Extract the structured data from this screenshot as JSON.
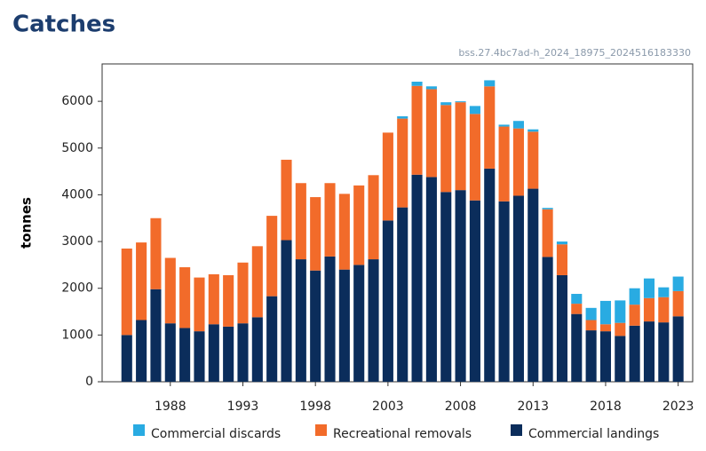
{
  "chart_data": {
    "type": "stacked-bar",
    "title": "Catches",
    "subtitle": "bss.27.4bc7ad-h_2024_18975_2024516183330",
    "ylabel": "tonnes",
    "x": [
      1985,
      1986,
      1987,
      1988,
      1989,
      1990,
      1991,
      1992,
      1993,
      1994,
      1995,
      1996,
      1997,
      1998,
      1999,
      2000,
      2001,
      2002,
      2003,
      2004,
      2005,
      2006,
      2007,
      2008,
      2009,
      2010,
      2011,
      2012,
      2013,
      2014,
      2015,
      2016,
      2017,
      2018,
      2019,
      2020,
      2021,
      2022,
      2023
    ],
    "series": [
      {
        "name": "Commercial discards",
        "color": "#29abe2",
        "values": [
          0,
          0,
          0,
          0,
          0,
          0,
          0,
          0,
          0,
          0,
          0,
          0,
          0,
          0,
          0,
          0,
          0,
          0,
          0,
          50,
          90,
          60,
          60,
          20,
          170,
          130,
          40,
          160,
          50,
          30,
          60,
          210,
          260,
          500,
          480,
          350,
          420,
          210,
          310
        ]
      },
      {
        "name": "Recreational removals",
        "color": "#f26b2a",
        "values": [
          1850,
          1660,
          1520,
          1400,
          1300,
          1150,
          1070,
          1100,
          1300,
          1520,
          1720,
          1720,
          1630,
          1570,
          1570,
          1620,
          1700,
          1800,
          1880,
          1900,
          1900,
          1880,
          1860,
          1880,
          1850,
          1760,
          1600,
          1440,
          1220,
          1020,
          660,
          220,
          220,
          150,
          280,
          450,
          500,
          540,
          540
        ]
      },
      {
        "name": "Commercial landings",
        "color": "#0b2d5b",
        "values": [
          1000,
          1320,
          1980,
          1250,
          1150,
          1080,
          1230,
          1180,
          1250,
          1380,
          1830,
          3030,
          2620,
          2380,
          2680,
          2400,
          2500,
          2620,
          3450,
          3730,
          4430,
          4380,
          4060,
          4100,
          3880,
          4560,
          3860,
          3980,
          4130,
          2670,
          2280,
          1450,
          1100,
          1080,
          980,
          1200,
          1290,
          1270,
          1400
        ]
      }
    ],
    "xlim": [
      1983.3,
      2024.0
    ],
    "xticks": [
      1988,
      1993,
      1998,
      2003,
      2008,
      2013,
      2018,
      2023
    ],
    "ylim": [
      0,
      6800
    ],
    "yticks": [
      0,
      1000,
      2000,
      3000,
      4000,
      5000,
      6000
    ]
  }
}
